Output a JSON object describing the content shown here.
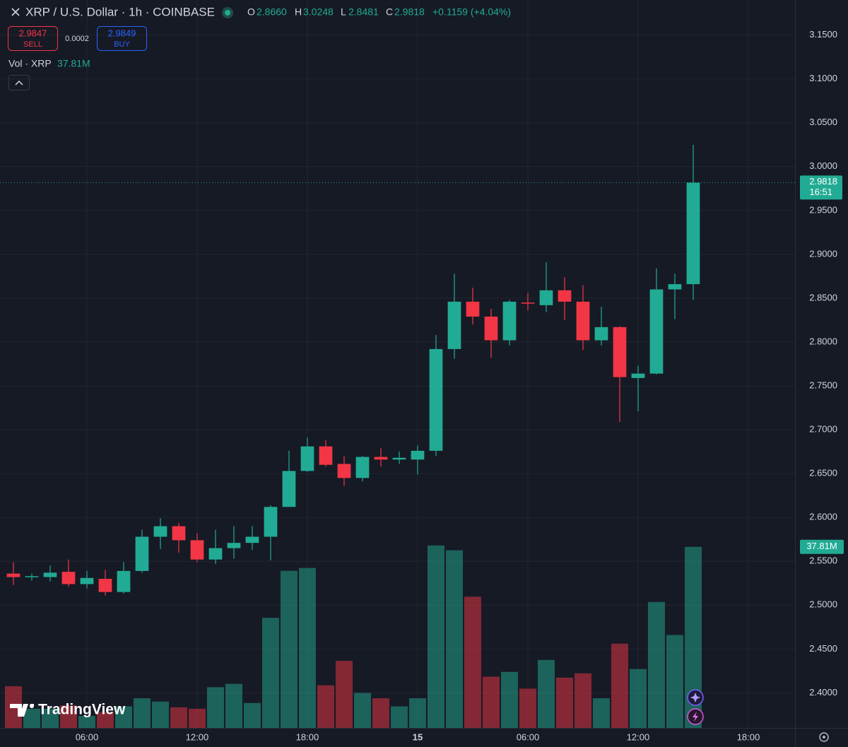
{
  "chart_data": {
    "type": "candlestick",
    "header": {
      "title": "XRP / U.S. Dollar · 1h · COINBASE",
      "o_label": "O",
      "o": "2.8660",
      "h_label": "H",
      "h": "3.0248",
      "l_label": "L",
      "l": "2.8481",
      "c_label": "C",
      "c": "2.9818",
      "change": "+0.1159 (+4.04%)"
    },
    "trade": {
      "sell_price": "2.9847",
      "sell_label": "SELL",
      "spread": "0.0002",
      "buy_price": "2.9849",
      "buy_label": "BUY"
    },
    "volume_legend": {
      "label": "Vol · XRP",
      "value": "37.81M"
    },
    "last_price_tag": {
      "price": "2.9818",
      "countdown": "16:51"
    },
    "brand": "TradingView",
    "up_color": "#22ab94",
    "down_color": "#f23645",
    "volume_up_color": "#22ab94",
    "volume_down_color": "#f23645",
    "grid": true,
    "categories": [
      null,
      null,
      null,
      null,
      null,
      null,
      null,
      null,
      null,
      null,
      null,
      null,
      null,
      null,
      null,
      null,
      null,
      null,
      null,
      null,
      null,
      null,
      null,
      null,
      null,
      null,
      null,
      null,
      null,
      null,
      null,
      null,
      null,
      null,
      null,
      null,
      null,
      null
    ],
    "open": [
      2.536,
      2.532,
      2.532,
      2.538,
      2.524,
      2.53,
      2.515,
      2.539,
      2.578,
      2.59,
      2.574,
      2.552,
      2.565,
      2.571,
      2.578,
      2.612,
      2.653,
      2.681,
      2.661,
      2.645,
      2.669,
      2.666,
      2.666,
      2.676,
      2.792,
      2.846,
      2.829,
      2.802,
      2.845,
      2.842,
      2.859,
      2.846,
      2.802,
      2.817,
      2.759,
      2.764,
      2.86,
      2.866
    ],
    "high": [
      2.549,
      2.536,
      2.545,
      2.552,
      2.539,
      2.54,
      2.549,
      2.586,
      2.599,
      2.594,
      2.582,
      2.586,
      2.59,
      2.59,
      2.614,
      2.676,
      2.691,
      2.688,
      2.67,
      2.67,
      2.679,
      2.675,
      2.682,
      2.808,
      2.878,
      2.862,
      2.838,
      2.848,
      2.856,
      2.891,
      2.874,
      2.865,
      2.84,
      2.818,
      2.773,
      2.884,
      2.878,
      3.0248
    ],
    "low": [
      2.523,
      2.528,
      2.527,
      2.521,
      2.519,
      2.511,
      2.513,
      2.537,
      2.564,
      2.56,
      2.549,
      2.547,
      2.553,
      2.563,
      2.551,
      2.612,
      2.652,
      2.658,
      2.636,
      2.641,
      2.658,
      2.661,
      2.649,
      2.67,
      2.781,
      2.82,
      2.782,
      2.796,
      2.836,
      2.834,
      2.825,
      2.791,
      2.796,
      2.709,
      2.721,
      2.763,
      2.826,
      2.8481
    ],
    "close": [
      2.532,
      2.533,
      2.537,
      2.524,
      2.531,
      2.515,
      2.539,
      2.578,
      2.59,
      2.574,
      2.552,
      2.565,
      2.571,
      2.578,
      2.612,
      2.653,
      2.681,
      2.66,
      2.645,
      2.669,
      2.666,
      2.668,
      2.676,
      2.792,
      2.846,
      2.829,
      2.802,
      2.846,
      2.844,
      2.859,
      2.846,
      2.802,
      2.817,
      2.76,
      2.764,
      2.86,
      2.866,
      2.9818
    ],
    "volume": [
      8.7,
      4.0,
      4.0,
      4.7,
      2.5,
      3.3,
      4.5,
      6.2,
      5.5,
      4.3,
      4.0,
      8.5,
      9.2,
      5.2,
      23.0,
      32.8,
      33.4,
      8.9,
      14.0,
      7.3,
      6.2,
      4.5,
      6.2,
      38.1,
      37.1,
      27.4,
      10.7,
      11.7,
      8.2,
      14.2,
      10.5,
      11.4,
      6.2,
      17.6,
      12.3,
      26.3,
      19.4,
      37.81
    ],
    "xlim": [
      -0.73,
      42.54
    ],
    "xticks": [
      {
        "value": 4,
        "label": "06:00"
      },
      {
        "value": 10,
        "label": "12:00"
      },
      {
        "value": 16,
        "label": "18:00"
      },
      {
        "value": 22,
        "label": "15"
      },
      {
        "value": 28,
        "label": "06:00"
      },
      {
        "value": 34,
        "label": "12:00"
      },
      {
        "value": 40,
        "label": "18:00"
      }
    ],
    "ylim": [
      2.36,
      3.19
    ],
    "yticks": [
      {
        "value": 2.4,
        "label": "2.4000"
      },
      {
        "value": 2.45,
        "label": "2.4500"
      },
      {
        "value": 2.5,
        "label": "2.5000"
      },
      {
        "value": 2.55,
        "label": "2.5500"
      },
      {
        "value": 2.6,
        "label": "2.6000"
      },
      {
        "value": 2.65,
        "label": "2.6500"
      },
      {
        "value": 2.7,
        "label": "2.7000"
      },
      {
        "value": 2.75,
        "label": "2.7500"
      },
      {
        "value": 2.8,
        "label": "2.8000"
      },
      {
        "value": 2.85,
        "label": "2.8500"
      },
      {
        "value": 2.9,
        "label": "2.9000"
      },
      {
        "value": 2.95,
        "label": "2.9500"
      },
      {
        "value": 3.0,
        "label": "3.0000"
      },
      {
        "value": 3.05,
        "label": "3.0500"
      },
      {
        "value": 3.1,
        "label": "3.1000"
      },
      {
        "value": 3.15,
        "label": "3.1500"
      }
    ],
    "y2lim": [
      0,
      152
    ]
  }
}
